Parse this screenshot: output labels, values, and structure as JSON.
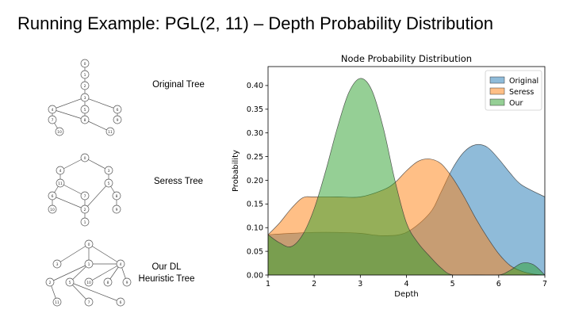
{
  "slide": {
    "title": "Running Example: PGL(2, 11) – Depth Probability Distribution"
  },
  "trees": [
    {
      "label": "Original Tree",
      "nodes": [
        {
          "id": "a",
          "label": "0"
        },
        {
          "id": "b",
          "label": "1"
        },
        {
          "id": "c",
          "label": "2"
        },
        {
          "id": "d",
          "label": "3"
        },
        {
          "id": "e",
          "label": "4"
        },
        {
          "id": "f",
          "label": "5"
        },
        {
          "id": "g",
          "label": "6"
        },
        {
          "id": "h",
          "label": "7"
        },
        {
          "id": "i",
          "label": "8"
        },
        {
          "id": "j",
          "label": "9"
        },
        {
          "id": "k",
          "label": "10"
        },
        {
          "id": "l",
          "label": "11"
        }
      ]
    },
    {
      "label": "Seress Tree",
      "nodes": [
        {
          "id": "a",
          "label": "0"
        },
        {
          "id": "b",
          "label": "4"
        },
        {
          "id": "c",
          "label": "3"
        },
        {
          "id": "d",
          "label": "11"
        },
        {
          "id": "e",
          "label": "5"
        },
        {
          "id": "f",
          "label": "6"
        },
        {
          "id": "g",
          "label": "7"
        },
        {
          "id": "h",
          "label": "8"
        },
        {
          "id": "i",
          "label": "10"
        },
        {
          "id": "j",
          "label": "2"
        },
        {
          "id": "k",
          "label": "9"
        },
        {
          "id": "l",
          "label": "1"
        }
      ]
    },
    {
      "label": "Our DL Heuristic Tree",
      "nodes": [
        {
          "id": "a",
          "label": "0"
        },
        {
          "id": "b",
          "label": "3"
        },
        {
          "id": "c",
          "label": "1"
        },
        {
          "id": "d",
          "label": "4"
        },
        {
          "id": "e",
          "label": "2"
        },
        {
          "id": "f",
          "label": "5"
        },
        {
          "id": "g",
          "label": "10"
        },
        {
          "id": "h",
          "label": "8"
        },
        {
          "id": "i",
          "label": "9"
        },
        {
          "id": "j",
          "label": "11"
        },
        {
          "id": "k",
          "label": "7"
        },
        {
          "id": "l",
          "label": "6"
        }
      ]
    }
  ],
  "chart_data": {
    "type": "area",
    "title": "Node Probability Distribution",
    "xlabel": "Depth",
    "ylabel": "Probability",
    "xlim": [
      1,
      7
    ],
    "ylim": [
      0,
      0.44
    ],
    "xticks": [
      "1",
      "2",
      "3",
      "4",
      "5",
      "6",
      "7"
    ],
    "yticks": [
      "0.00",
      "0.05",
      "0.10",
      "0.15",
      "0.20",
      "0.25",
      "0.30",
      "0.35",
      "0.40"
    ],
    "grid": false,
    "legend_position": "top-right",
    "series": [
      {
        "name": "Original",
        "color": "#1f77b4",
        "x": [
          1,
          1.5,
          2,
          2.5,
          3,
          3.5,
          4,
          4.5,
          4.75,
          5,
          5.25,
          5.5,
          5.75,
          6,
          6.25,
          6.5,
          7
        ],
        "values": [
          0.085,
          0.088,
          0.09,
          0.09,
          0.088,
          0.083,
          0.09,
          0.13,
          0.175,
          0.225,
          0.26,
          0.275,
          0.27,
          0.245,
          0.215,
          0.19,
          0.165
        ]
      },
      {
        "name": "Seress",
        "color": "#ff7f0e",
        "x": [
          1,
          1.25,
          1.5,
          1.75,
          2,
          2.5,
          3,
          3.5,
          3.75,
          4,
          4.25,
          4.5,
          4.75,
          5,
          5.25,
          5.5,
          5.75,
          6,
          6.25,
          6.5,
          6.75,
          7
        ],
        "values": [
          0.085,
          0.11,
          0.14,
          0.163,
          0.165,
          0.165,
          0.165,
          0.18,
          0.195,
          0.22,
          0.24,
          0.245,
          0.235,
          0.205,
          0.165,
          0.12,
          0.08,
          0.045,
          0.02,
          0.008,
          0.002,
          0.0
        ]
      },
      {
        "name": "Our",
        "color": "#2ca02c",
        "x": [
          1,
          1.25,
          1.5,
          1.75,
          2,
          2.25,
          2.5,
          2.75,
          3,
          3.25,
          3.5,
          3.75,
          4,
          4.25,
          4.5,
          4.75,
          5,
          5.5,
          6,
          6.25,
          6.5,
          6.75,
          7
        ],
        "values": [
          0.085,
          0.068,
          0.06,
          0.085,
          0.14,
          0.22,
          0.31,
          0.385,
          0.415,
          0.39,
          0.31,
          0.2,
          0.11,
          0.068,
          0.04,
          0.015,
          0.0,
          0.0,
          0.0,
          0.01,
          0.025,
          0.022,
          0.0
        ]
      }
    ]
  }
}
